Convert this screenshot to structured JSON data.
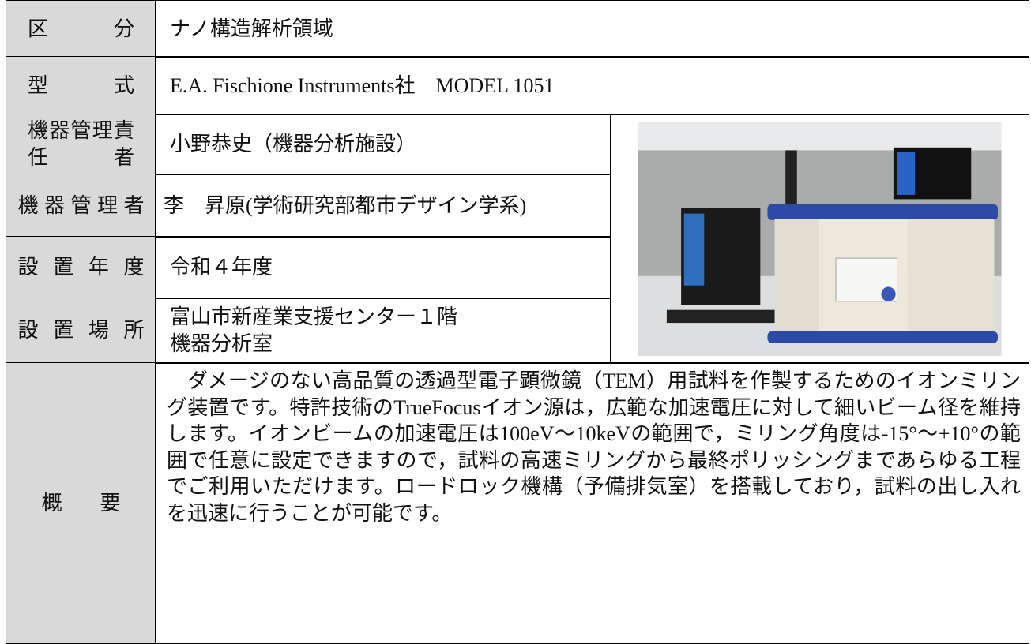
{
  "table": {
    "rows": [
      {
        "label": "区分",
        "value": "ナノ構造解析領域"
      },
      {
        "label": "型式",
        "value": "E.A. Fischione Instruments社　MODEL 1051"
      },
      {
        "label": "機器管理責任者",
        "value": "小野恭史（機器分析施設）"
      },
      {
        "label": "機器管理者",
        "value": "李　昇原(学術研究部都市デザイン学系)"
      },
      {
        "label": "設置年度",
        "value": "令和４年度"
      },
      {
        "label": "設置場所",
        "value": [
          "富山市新産業支援センター１階",
          "機器分析室"
        ]
      },
      {
        "label": "概要",
        "value": "ダメージのない高品質の透過型電子顕微鏡（TEM）用試料を作製するためのイオンミリング装置です。特許技術のTrueFocusイオン源は，広範な加速電圧に対して細いビーム径を維持します。イオンビームの加速電圧は100eV～10keVの範囲で，ミリング角度は-15°～+10°の範囲で任意に設定できますので，試料の高速ミリングから最終ポリッシングまであらゆる工程でご利用いただけます。ロードロック機構（予備排気室）を搭載しており，試料の出し入れを迅速に行うことが可能です。"
      }
    ]
  }
}
